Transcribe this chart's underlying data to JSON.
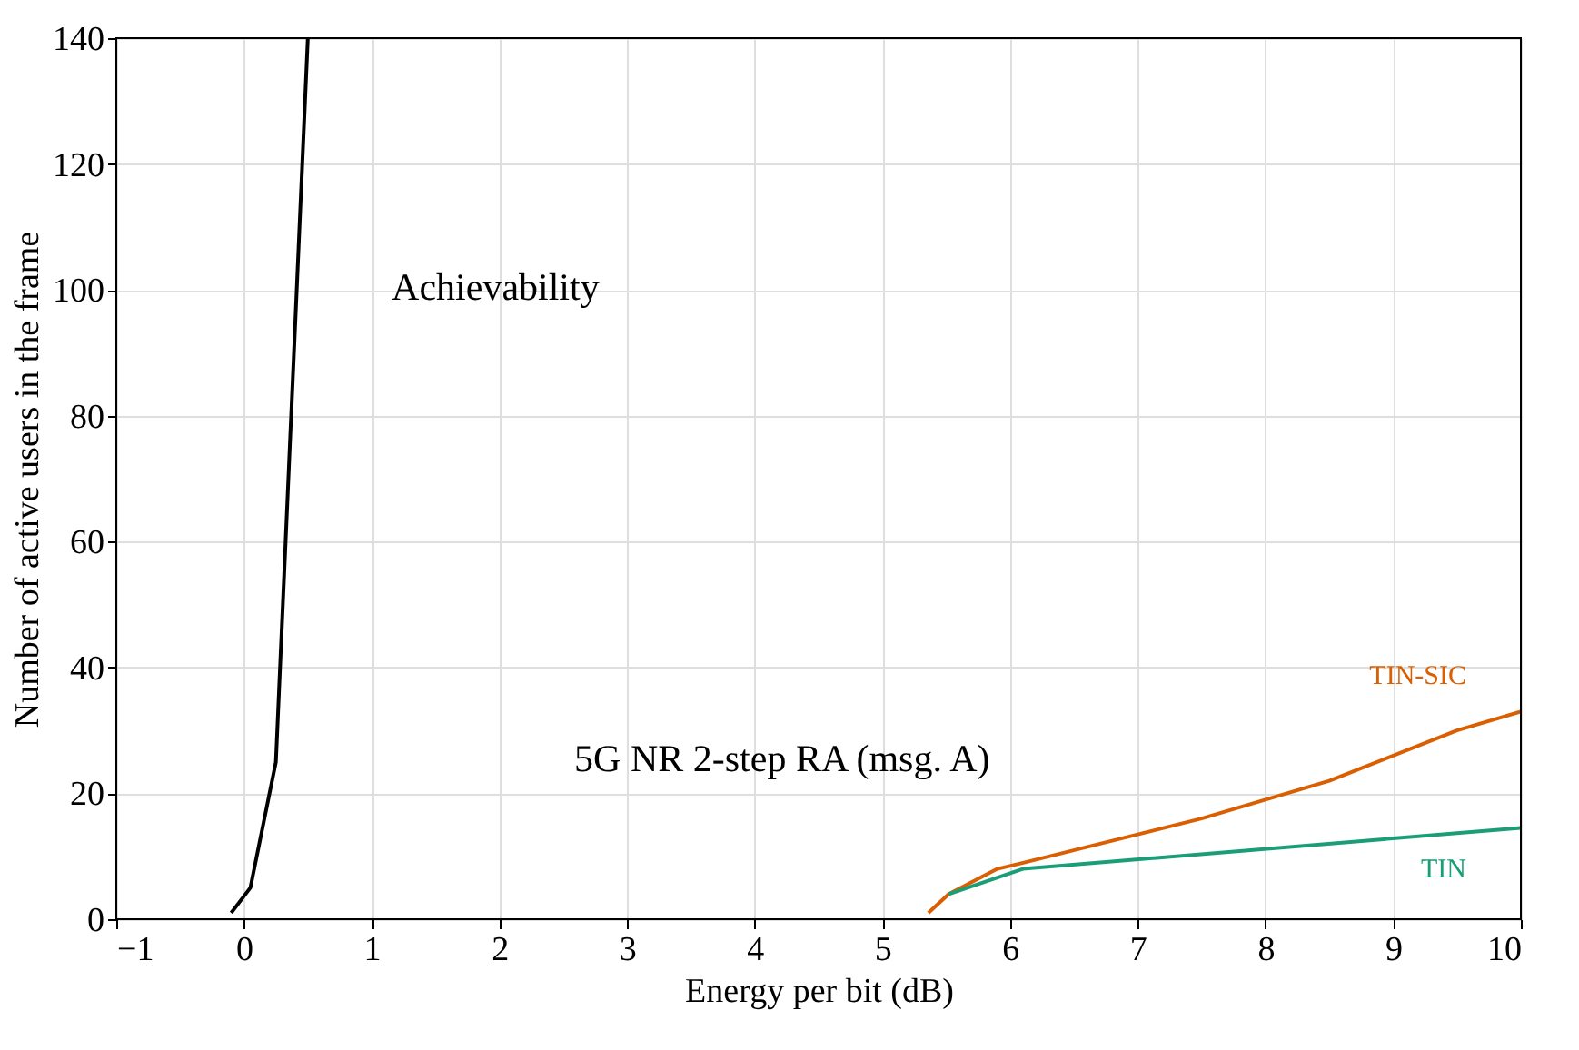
{
  "chart_data": {
    "type": "line",
    "xlabel": "Energy per bit (dB)",
    "ylabel": "Number of active users in the frame",
    "xlim": [
      -1,
      10
    ],
    "xticks": [
      -1,
      0,
      1,
      2,
      3,
      4,
      5,
      6,
      7,
      8,
      9,
      10
    ],
    "ylim": [
      0,
      140
    ],
    "yticks": [
      0,
      20,
      40,
      60,
      80,
      100,
      120,
      140
    ],
    "grid": true,
    "marker": "none",
    "line_style": "solid",
    "series": [
      {
        "color": "#000000",
        "x": [
          -0.1,
          0.05,
          0.25,
          0.5
        ],
        "values": [
          1,
          5,
          25,
          140
        ]
      },
      {
        "name": "TIN-SIC",
        "color": "#d95f02",
        "x": [
          5.36,
          5.52,
          5.9,
          6.11,
          7.5,
          8.5,
          9.5,
          10
        ],
        "values": [
          1,
          4,
          8,
          9,
          16,
          22,
          30,
          33
        ]
      },
      {
        "name": "TIN",
        "color": "#1b9e77",
        "x": [
          5.52,
          6.1,
          10
        ],
        "values": [
          4,
          8,
          14.5
        ]
      }
    ],
    "annotations": [
      "Achievability",
      "5G NR 2-step RA (msg. A)"
    ]
  }
}
